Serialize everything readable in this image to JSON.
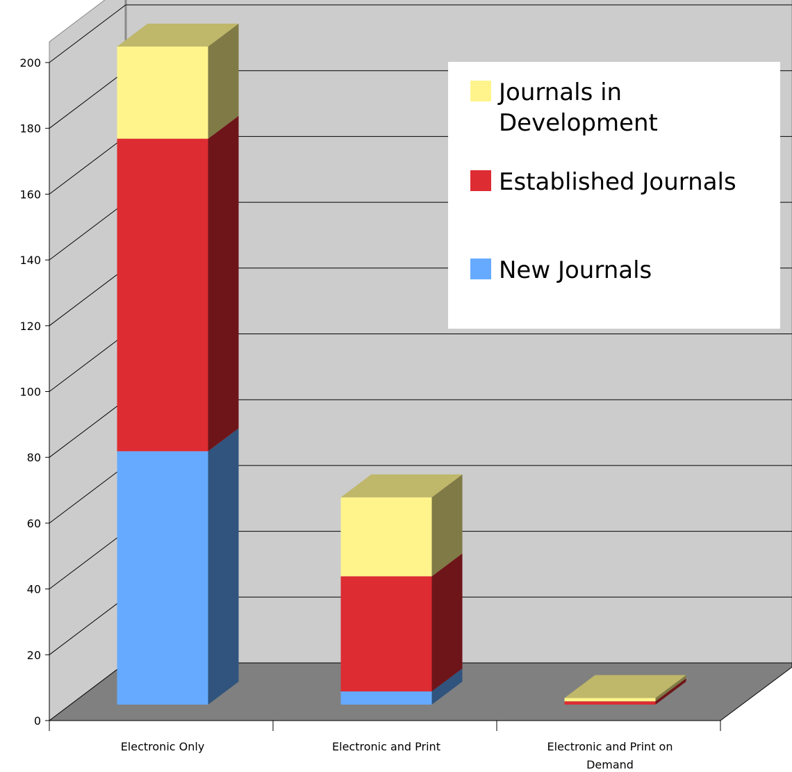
{
  "chart_data": {
    "type": "bar",
    "stacked": true,
    "three_d": true,
    "categories": [
      "Electronic Only",
      "Electronic and Print",
      "Electronic and Print on Demand"
    ],
    "series": [
      {
        "name": "New Journals",
        "values": [
          77,
          4,
          0
        ],
        "color": "#66aaff",
        "side_color": "#30547d"
      },
      {
        "name": "Established Journals",
        "values": [
          95,
          35,
          1
        ],
        "color": "#dd2c32",
        "side_color": "#6e1519"
      },
      {
        "name": "Journals in Development",
        "values": [
          28,
          24,
          1
        ],
        "color": "#fff48c",
        "side_color": "#7f7a46"
      }
    ],
    "ylim": [
      0,
      200
    ],
    "yticks": [
      0,
      20,
      40,
      60,
      80,
      100,
      120,
      140,
      160,
      180,
      200
    ],
    "grid": true,
    "legend_position": "top-right",
    "colors": {
      "wall": "#cccccc",
      "floor": "#808080",
      "grid": "#000000",
      "legend_bg": "#ffffff",
      "top_yellow": "#c0b96c"
    }
  }
}
